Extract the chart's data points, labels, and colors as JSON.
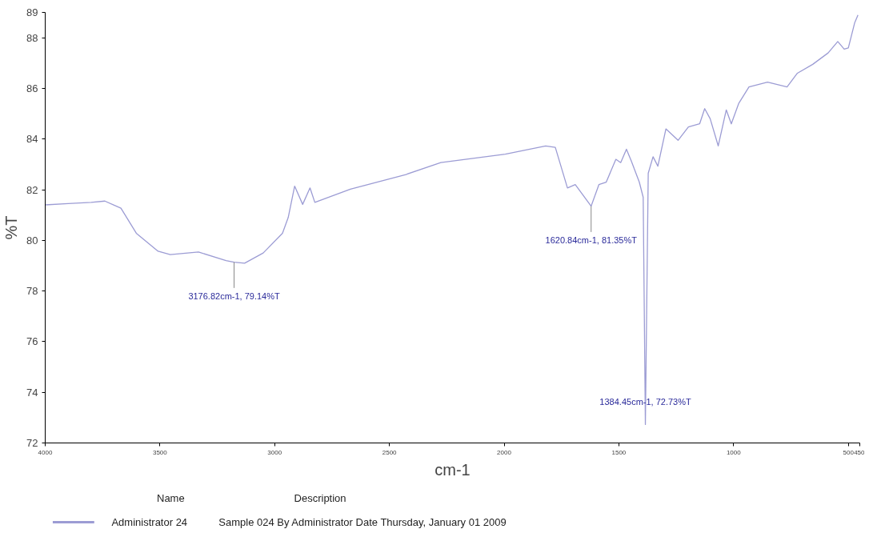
{
  "chart_data": {
    "type": "line",
    "xlabel": "cm-1",
    "ylabel": "%T",
    "xlim": [
      4000,
      450
    ],
    "xticks": [
      4000,
      3500,
      3000,
      2500,
      2000,
      1500,
      1000,
      500,
      450
    ],
    "ylim": [
      72,
      89
    ],
    "yticks": [
      72,
      74,
      76,
      78,
      80,
      82,
      84,
      86,
      88,
      89
    ],
    "grid": false,
    "legend": "bottom",
    "marker": "none",
    "line_style": "solid",
    "series": [
      {
        "name": "Administrator 24",
        "color": "#9c9cd4",
        "x": [
          4000,
          3900,
          3800,
          3740,
          3670,
          3603,
          3508,
          3455,
          3332,
          3212,
          3176.82,
          3131,
          3050,
          2966,
          2941,
          2913,
          2878,
          2846,
          2825,
          2670,
          2428,
          2276,
          1995,
          1819,
          1777,
          1724,
          1690,
          1620.84,
          1587,
          1555,
          1513,
          1492,
          1467,
          1446,
          1411,
          1394,
          1384.45,
          1372,
          1351,
          1330,
          1295,
          1242,
          1197,
          1148,
          1126,
          1102,
          1067,
          1032,
          1010,
          978,
          933,
          852,
          767,
          722,
          655,
          588,
          546,
          518,
          500,
          472,
          458
        ],
        "values": [
          81.4,
          81.45,
          81.5,
          81.55,
          81.27,
          80.28,
          79.57,
          79.44,
          79.54,
          79.2,
          79.14,
          79.1,
          79.5,
          80.28,
          80.9,
          82.14,
          81.42,
          82.07,
          81.5,
          82.02,
          82.6,
          83.07,
          83.4,
          83.73,
          83.67,
          82.07,
          82.2,
          81.35,
          82.2,
          82.3,
          83.2,
          83.07,
          83.6,
          83.14,
          82.3,
          81.7,
          72.73,
          82.65,
          83.3,
          82.93,
          84.4,
          83.95,
          84.48,
          84.6,
          85.2,
          84.8,
          83.73,
          85.15,
          84.6,
          85.4,
          86.06,
          86.25,
          86.06,
          86.6,
          86.95,
          87.4,
          87.85,
          87.55,
          87.6,
          88.6,
          88.9
        ]
      }
    ],
    "annotations": [
      {
        "text": "3176.82cm-1, 79.14%T",
        "x": 3176.82,
        "y": 79.14
      },
      {
        "text": "1620.84cm-1, 81.35%T",
        "x": 1620.84,
        "y": 81.35
      },
      {
        "text": "1384.45cm-1, 72.73%T",
        "x": 1384.45,
        "y": 72.73
      },
      "Name",
      "Description",
      "Sample 024 By Administrator Date Thursday, January 01 2009"
    ]
  }
}
